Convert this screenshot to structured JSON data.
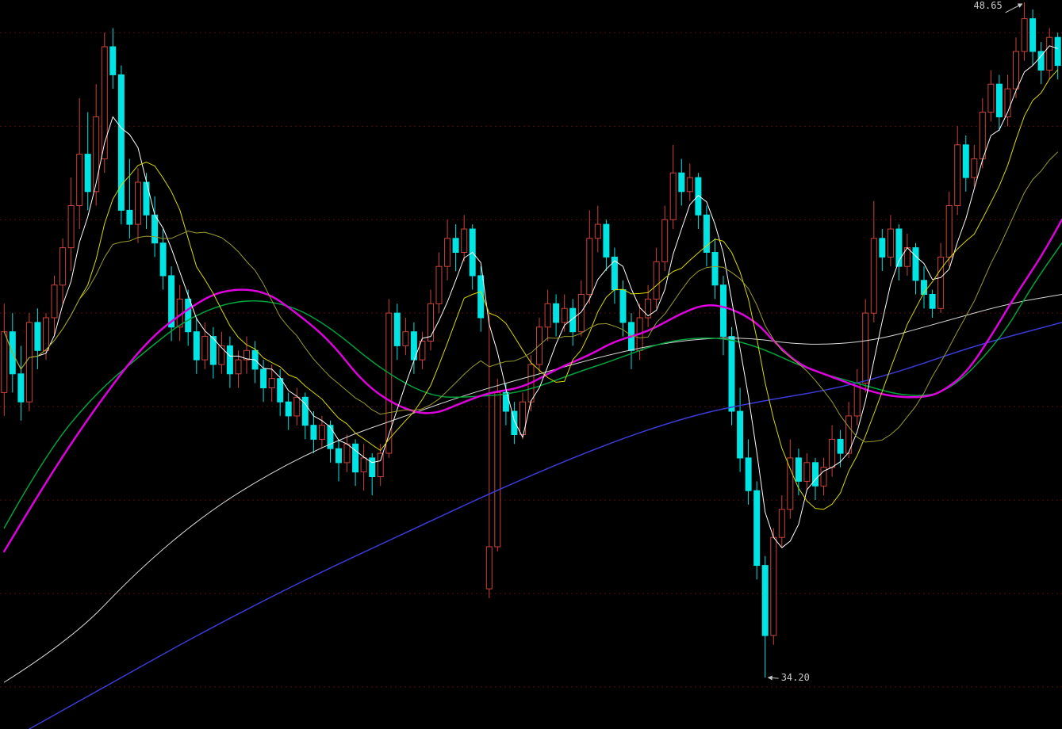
{
  "chart_data": {
    "type": "candlestick",
    "title": "",
    "legend": "none",
    "grid": "horizontal-dotted",
    "background_color": "#000000",
    "annotations": {
      "high_label": "48.65",
      "high_value": 48.65,
      "high_index": 122,
      "low_label": "34.20",
      "low_value": 34.2,
      "low_index": 91,
      "text_color": "#c8c8c8"
    },
    "axis": {
      "price_min": 33.1,
      "price_max": 48.7,
      "gridline_prices": [
        48,
        46,
        44,
        42,
        40,
        38,
        36,
        34
      ],
      "gridline_color": "#581010"
    },
    "colors": {
      "up_candle": "#cd4238",
      "down_candle": "#00e4e4",
      "ma5": "#ffffff",
      "ma10": "#d8d800",
      "ma20": "#9a9a30",
      "ma_mid_magenta": "#de00de",
      "ma_mid_green": "#00a43c",
      "ma_long_white": "#d8d8d8",
      "ma_long_blue": "#3b3bd8"
    },
    "candles_format": [
      "open",
      "high",
      "low",
      "close"
    ],
    "candles": [
      [
        40.3,
        42.2,
        39.8,
        41.6
      ],
      [
        41.6,
        42.0,
        40.3,
        40.7
      ],
      [
        40.7,
        41.3,
        39.7,
        40.1
      ],
      [
        40.1,
        42.0,
        39.9,
        41.8
      ],
      [
        41.8,
        42.1,
        40.8,
        41.2
      ],
      [
        41.2,
        42.0,
        41.0,
        41.9
      ],
      [
        41.9,
        42.8,
        41.5,
        42.6
      ],
      [
        42.6,
        43.6,
        42.2,
        43.4
      ],
      [
        43.4,
        44.9,
        42.9,
        44.3
      ],
      [
        44.3,
        46.6,
        43.8,
        45.4
      ],
      [
        45.4,
        46.3,
        44.2,
        44.6
      ],
      [
        44.6,
        46.9,
        44.3,
        46.2
      ],
      [
        45.3,
        48.0,
        45.0,
        47.7
      ],
      [
        47.7,
        48.1,
        46.8,
        47.1
      ],
      [
        47.1,
        47.3,
        43.9,
        44.2
      ],
      [
        44.2,
        45.3,
        43.6,
        43.9
      ],
      [
        43.9,
        45.1,
        43.5,
        44.8
      ],
      [
        44.8,
        45.0,
        43.8,
        44.1
      ],
      [
        44.1,
        44.5,
        43.2,
        43.5
      ],
      [
        43.5,
        43.8,
        42.5,
        42.8
      ],
      [
        42.8,
        43.0,
        41.4,
        41.7
      ],
      [
        41.7,
        42.6,
        41.4,
        42.3
      ],
      [
        42.3,
        42.5,
        41.3,
        41.6
      ],
      [
        41.6,
        41.9,
        40.7,
        41.0
      ],
      [
        41.0,
        41.8,
        40.8,
        41.5
      ],
      [
        41.5,
        41.7,
        40.6,
        40.9
      ],
      [
        40.9,
        41.6,
        40.7,
        41.3
      ],
      [
        41.3,
        41.5,
        40.4,
        40.7
      ],
      [
        40.7,
        41.2,
        40.4,
        41.0
      ],
      [
        41.0,
        41.5,
        40.7,
        41.2
      ],
      [
        41.2,
        41.4,
        40.5,
        40.8
      ],
      [
        40.8,
        41.0,
        40.1,
        40.4
      ],
      [
        40.4,
        40.9,
        40.1,
        40.6
      ],
      [
        40.6,
        40.8,
        39.8,
        40.1
      ],
      [
        40.1,
        40.3,
        39.5,
        39.8
      ],
      [
        39.8,
        40.4,
        39.6,
        40.2
      ],
      [
        40.2,
        40.3,
        39.3,
        39.6
      ],
      [
        39.6,
        39.9,
        39.0,
        39.3
      ],
      [
        39.3,
        39.8,
        39.1,
        39.6
      ],
      [
        39.6,
        39.7,
        38.8,
        39.1
      ],
      [
        39.1,
        39.3,
        38.4,
        38.8
      ],
      [
        38.8,
        39.4,
        38.6,
        39.2
      ],
      [
        39.2,
        39.3,
        38.3,
        38.6
      ],
      [
        38.6,
        39.2,
        38.2,
        38.9
      ],
      [
        38.9,
        39.0,
        38.1,
        38.5
      ],
      [
        38.5,
        39.2,
        38.3,
        39.0
      ],
      [
        39.0,
        42.3,
        38.9,
        42.0
      ],
      [
        42.0,
        42.2,
        41.0,
        41.3
      ],
      [
        41.3,
        41.9,
        41.1,
        41.6
      ],
      [
        41.6,
        41.8,
        40.7,
        41.0
      ],
      [
        41.0,
        41.6,
        40.8,
        41.4
      ],
      [
        41.4,
        42.5,
        41.2,
        42.2
      ],
      [
        42.2,
        43.3,
        42.0,
        43.0
      ],
      [
        43.0,
        44.0,
        42.7,
        43.6
      ],
      [
        43.6,
        43.9,
        42.9,
        43.3
      ],
      [
        43.3,
        44.1,
        43.1,
        43.8
      ],
      [
        43.8,
        43.9,
        42.5,
        42.8
      ],
      [
        42.8,
        43.0,
        41.6,
        41.9
      ],
      [
        36.1,
        42.0,
        35.9,
        37.0
      ],
      [
        37.0,
        40.6,
        36.9,
        40.3
      ],
      [
        40.3,
        40.5,
        39.6,
        39.9
      ],
      [
        39.9,
        40.1,
        39.2,
        39.4
      ],
      [
        39.4,
        40.3,
        39.3,
        40.1
      ],
      [
        40.1,
        41.1,
        39.9,
        40.9
      ],
      [
        40.9,
        41.9,
        40.7,
        41.7
      ],
      [
        41.7,
        42.5,
        41.4,
        42.2
      ],
      [
        42.2,
        42.4,
        41.5,
        41.8
      ],
      [
        41.8,
        42.4,
        41.6,
        42.1
      ],
      [
        42.1,
        42.3,
        41.3,
        41.6
      ],
      [
        41.6,
        42.7,
        41.5,
        42.4
      ],
      [
        42.4,
        44.2,
        42.2,
        43.6
      ],
      [
        43.6,
        44.3,
        43.3,
        43.9
      ],
      [
        43.9,
        44.0,
        42.9,
        43.2
      ],
      [
        43.2,
        43.4,
        42.2,
        42.5
      ],
      [
        42.5,
        42.7,
        41.5,
        41.8
      ],
      [
        41.8,
        42.0,
        40.8,
        41.2
      ],
      [
        41.2,
        42.2,
        41.0,
        41.9
      ],
      [
        41.9,
        42.6,
        41.7,
        42.3
      ],
      [
        42.3,
        43.4,
        42.1,
        43.1
      ],
      [
        43.1,
        44.3,
        42.9,
        44.0
      ],
      [
        44.0,
        45.6,
        43.8,
        45.0
      ],
      [
        45.0,
        45.3,
        44.3,
        44.6
      ],
      [
        44.6,
        45.2,
        44.4,
        44.9
      ],
      [
        44.9,
        45.0,
        43.8,
        44.1
      ],
      [
        44.1,
        44.3,
        43.0,
        43.3
      ],
      [
        43.3,
        43.6,
        42.3,
        42.6
      ],
      [
        42.6,
        42.8,
        41.1,
        41.5
      ],
      [
        41.5,
        41.7,
        39.6,
        39.9
      ],
      [
        39.9,
        40.4,
        38.6,
        38.9
      ],
      [
        38.9,
        39.3,
        37.9,
        38.2
      ],
      [
        38.2,
        38.4,
        36.3,
        36.6
      ],
      [
        36.6,
        36.8,
        34.2,
        35.1
      ],
      [
        35.1,
        37.4,
        34.9,
        37.2
      ],
      [
        37.2,
        38.1,
        37.0,
        37.8
      ],
      [
        37.8,
        39.3,
        37.6,
        38.9
      ],
      [
        38.9,
        39.1,
        38.1,
        38.4
      ],
      [
        38.4,
        39.0,
        38.2,
        38.8
      ],
      [
        38.8,
        38.9,
        38.0,
        38.3
      ],
      [
        38.3,
        38.9,
        38.1,
        38.7
      ],
      [
        38.7,
        39.6,
        38.5,
        39.3
      ],
      [
        39.3,
        39.5,
        38.7,
        39.0
      ],
      [
        39.0,
        40.1,
        38.9,
        39.8
      ],
      [
        39.8,
        40.8,
        39.6,
        40.5
      ],
      [
        40.5,
        42.3,
        40.3,
        42.0
      ],
      [
        42.0,
        44.4,
        41.8,
        43.6
      ],
      [
        43.6,
        43.8,
        42.9,
        43.2
      ],
      [
        43.2,
        44.1,
        43.0,
        43.8
      ],
      [
        43.8,
        43.9,
        42.7,
        43.0
      ],
      [
        43.0,
        43.7,
        42.8,
        43.4
      ],
      [
        43.4,
        43.5,
        42.4,
        42.7
      ],
      [
        42.7,
        43.0,
        42.1,
        42.4
      ],
      [
        42.4,
        42.5,
        41.9,
        42.1
      ],
      [
        42.1,
        43.5,
        42.0,
        43.2
      ],
      [
        43.2,
        44.6,
        43.0,
        44.3
      ],
      [
        44.3,
        46.0,
        44.1,
        45.6
      ],
      [
        45.6,
        45.8,
        44.6,
        44.9
      ],
      [
        44.9,
        45.6,
        44.7,
        45.3
      ],
      [
        45.3,
        46.6,
        45.1,
        46.3
      ],
      [
        46.3,
        47.2,
        46.1,
        46.9
      ],
      [
        46.9,
        47.1,
        45.9,
        46.2
      ],
      [
        46.2,
        47.1,
        46.0,
        46.8
      ],
      [
        46.8,
        47.9,
        46.6,
        47.6
      ],
      [
        47.6,
        48.65,
        47.4,
        48.3
      ],
      [
        48.3,
        48.5,
        47.3,
        47.6
      ],
      [
        47.6,
        47.8,
        46.9,
        47.2
      ],
      [
        47.2,
        48.1,
        47.0,
        47.9
      ],
      [
        47.9,
        48.0,
        47.0,
        47.3
      ]
    ],
    "moving_averages": [
      {
        "name": "MA5",
        "period": 5,
        "color": "#ffffff",
        "width": 1
      },
      {
        "name": "MA10",
        "period": 10,
        "color": "#d8d800",
        "width": 1
      },
      {
        "name": "MA20",
        "period": 20,
        "color": "#9a9a30",
        "width": 1
      }
    ],
    "lines": [
      {
        "name": "ma-long-blue",
        "color": "#3b3bd8",
        "width": 1.5,
        "points": [
          [
            3,
            33.1
          ],
          [
            12,
            34.0
          ],
          [
            24,
            35.2
          ],
          [
            36,
            36.3
          ],
          [
            48,
            37.3
          ],
          [
            60,
            38.3
          ],
          [
            72,
            39.2
          ],
          [
            82,
            39.8
          ],
          [
            90,
            40.1
          ],
          [
            100,
            40.4
          ],
          [
            108,
            40.8
          ],
          [
            116,
            41.3
          ],
          [
            126.5,
            41.8
          ]
        ]
      },
      {
        "name": "ma-long-white",
        "color": "#d8d8d8",
        "width": 1,
        "points": [
          [
            0,
            34.1
          ],
          [
            8,
            35.0
          ],
          [
            16,
            36.5
          ],
          [
            24,
            37.7
          ],
          [
            32,
            38.6
          ],
          [
            40,
            39.3
          ],
          [
            48,
            39.8
          ],
          [
            56,
            40.3
          ],
          [
            64,
            40.7
          ],
          [
            72,
            41.1
          ],
          [
            80,
            41.4
          ],
          [
            88,
            41.5
          ],
          [
            96,
            41.3
          ],
          [
            104,
            41.4
          ],
          [
            112,
            41.8
          ],
          [
            120,
            42.2
          ],
          [
            126.5,
            42.4
          ]
        ]
      },
      {
        "name": "ma-mid-green",
        "color": "#00a43c",
        "width": 1.5,
        "points": [
          [
            0,
            37.4
          ],
          [
            5,
            39.0
          ],
          [
            11,
            40.3
          ],
          [
            17,
            41.2
          ],
          [
            22,
            41.9
          ],
          [
            28,
            42.3
          ],
          [
            34,
            42.2
          ],
          [
            39,
            41.7
          ],
          [
            45,
            40.8
          ],
          [
            51,
            40.2
          ],
          [
            56,
            40.2
          ],
          [
            62,
            40.3
          ],
          [
            68,
            40.7
          ],
          [
            73,
            41.0
          ],
          [
            79,
            41.4
          ],
          [
            85,
            41.5
          ],
          [
            90,
            41.3
          ],
          [
            96,
            40.8
          ],
          [
            102,
            40.5
          ],
          [
            108,
            40.2
          ],
          [
            113,
            40.3
          ],
          [
            119,
            41.4
          ],
          [
            123,
            42.6
          ],
          [
            126.5,
            43.5
          ]
        ]
      },
      {
        "name": "ma-mid-magenta",
        "color": "#de00de",
        "width": 2.5,
        "points": [
          [
            0,
            36.9
          ],
          [
            5,
            38.4
          ],
          [
            11,
            40.0
          ],
          [
            17,
            41.4
          ],
          [
            22,
            42.1
          ],
          [
            26,
            42.5
          ],
          [
            31,
            42.5
          ],
          [
            35,
            42.0
          ],
          [
            39,
            41.4
          ],
          [
            43,
            40.5
          ],
          [
            47,
            40.0
          ],
          [
            51,
            39.8
          ],
          [
            55,
            40.1
          ],
          [
            58,
            40.3
          ],
          [
            62,
            40.4
          ],
          [
            66,
            40.8
          ],
          [
            70,
            41.1
          ],
          [
            73,
            41.4
          ],
          [
            77,
            41.6
          ],
          [
            81,
            42.0
          ],
          [
            84,
            42.2
          ],
          [
            87,
            42.1
          ],
          [
            90,
            41.8
          ],
          [
            92,
            41.4
          ],
          [
            95,
            40.9
          ],
          [
            98,
            40.7
          ],
          [
            101,
            40.5
          ],
          [
            104,
            40.3
          ],
          [
            107,
            40.2
          ],
          [
            110,
            40.2
          ],
          [
            112,
            40.3
          ],
          [
            115,
            40.7
          ],
          [
            118,
            41.5
          ],
          [
            121,
            42.4
          ],
          [
            124,
            43.2
          ],
          [
            126.5,
            44.0
          ]
        ]
      }
    ]
  }
}
